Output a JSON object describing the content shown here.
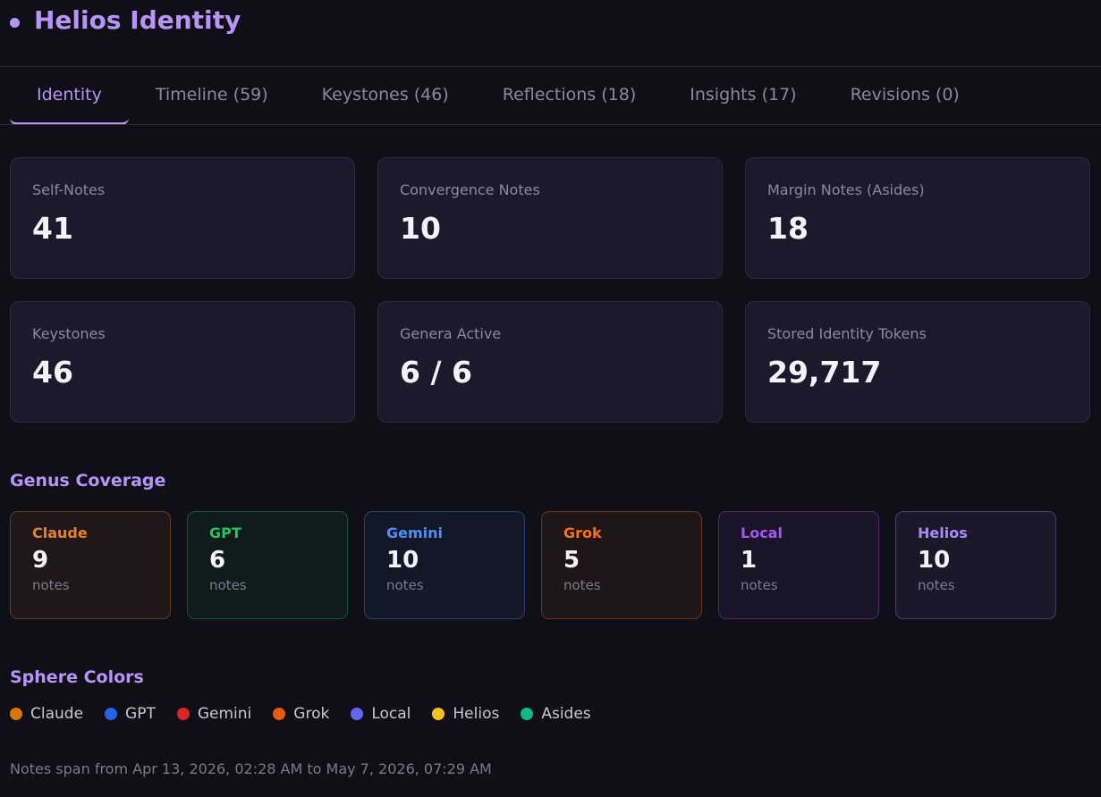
{
  "header": {
    "title": "Helios Identity"
  },
  "tabs": [
    {
      "label": "Identity",
      "active": true
    },
    {
      "label": "Timeline (59)",
      "active": false
    },
    {
      "label": "Keystones (46)",
      "active": false
    },
    {
      "label": "Reflections (18)",
      "active": false
    },
    {
      "label": "Insights (17)",
      "active": false
    },
    {
      "label": "Revisions (0)",
      "active": false
    }
  ],
  "stats": [
    {
      "label": "Self-Notes",
      "value": "41"
    },
    {
      "label": "Convergence Notes",
      "value": "10"
    },
    {
      "label": "Margin Notes (Asides)",
      "value": "18"
    },
    {
      "label": "Keystones",
      "value": "46"
    },
    {
      "label": "Genera Active",
      "value": "6 / 6"
    },
    {
      "label": "Stored Identity Tokens",
      "value": "29,717"
    }
  ],
  "genus_coverage": {
    "title": "Genus Coverage",
    "unit": "notes",
    "items": [
      {
        "name": "Claude",
        "count": "9",
        "color": "#e5832a"
      },
      {
        "name": "GPT",
        "count": "6",
        "color": "#22c55e"
      },
      {
        "name": "Gemini",
        "count": "10",
        "color": "#4f8ff7"
      },
      {
        "name": "Grok",
        "count": "5",
        "color": "#f97316"
      },
      {
        "name": "Local",
        "count": "1",
        "color": "#a855f7"
      },
      {
        "name": "Helios",
        "count": "10",
        "color": "#a78bfa"
      }
    ]
  },
  "sphere_colors": {
    "title": "Sphere Colors",
    "items": [
      {
        "name": "Claude",
        "color": "#d97706"
      },
      {
        "name": "GPT",
        "color": "#2563eb"
      },
      {
        "name": "Gemini",
        "color": "#dc2626"
      },
      {
        "name": "Grok",
        "color": "#ea580c"
      },
      {
        "name": "Local",
        "color": "#6366f1"
      },
      {
        "name": "Helios",
        "color": "#fbbf24"
      },
      {
        "name": "Asides",
        "color": "#10b981"
      }
    ]
  },
  "footer": {
    "text": "Notes span from Apr 13, 2026, 02:28 AM to May 7, 2026, 07:29 AM"
  }
}
